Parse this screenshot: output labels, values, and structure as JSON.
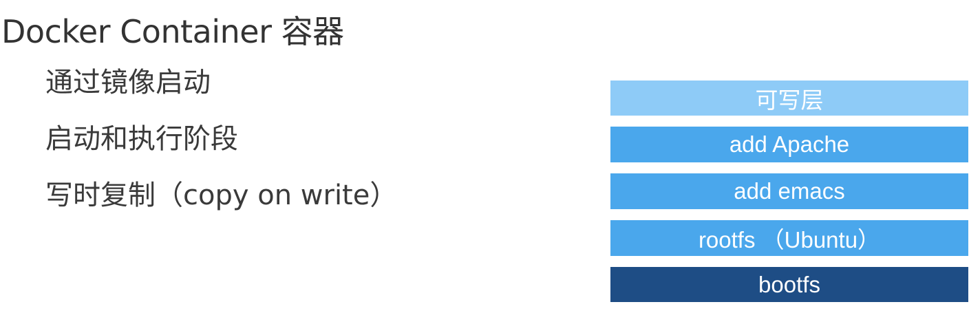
{
  "slide": {
    "title": "Docker Container 容器",
    "bullets": [
      "通过镜像启动",
      "启动和执行阶段",
      "写时复制（copy on write）"
    ]
  },
  "layers": [
    {
      "label": "可写层",
      "color": "#8ECBF7"
    },
    {
      "label": "add Apache",
      "color": "#4AA7EC"
    },
    {
      "label": "add emacs",
      "color": "#4AA7EC"
    },
    {
      "label": "rootfs （Ubuntu）",
      "color": "#4AA7EC"
    },
    {
      "label": "bootfs",
      "color": "#1E4D85"
    }
  ]
}
